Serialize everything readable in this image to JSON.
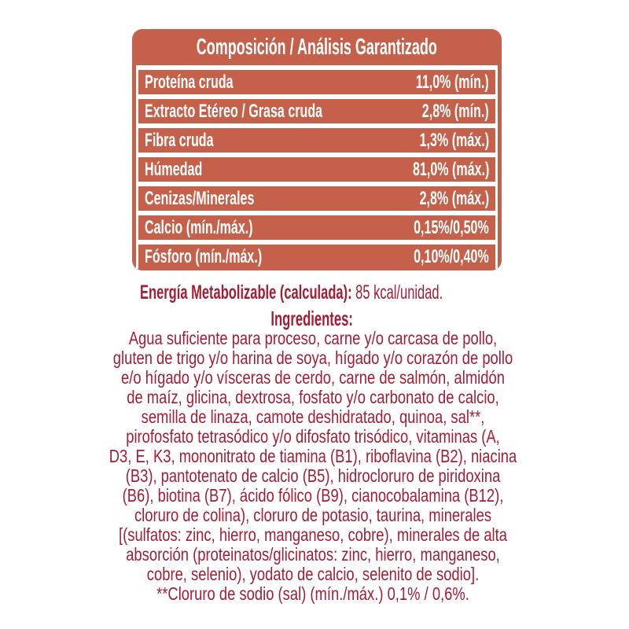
{
  "colors": {
    "table_bg": "#c5604a",
    "text_red": "#a31e35",
    "table_text": "#ffffff"
  },
  "table": {
    "title": "Composición / Análisis Garantizado",
    "rows": [
      {
        "label": "Proteína cruda",
        "value": "11,0% (mín.)"
      },
      {
        "label": "Extracto Etéreo / Grasa cruda",
        "value": "2,8% (mín.)"
      },
      {
        "label": "Fibra cruda",
        "value": "1,3% (máx.)"
      },
      {
        "label": "Húmedad",
        "value": "81,0% (máx.)"
      },
      {
        "label": "Cenizas/Minerales",
        "value": "2,8% (máx.)"
      },
      {
        "label": "Calcio (mín./máx.)",
        "value": "0,15%/0,50%"
      },
      {
        "label": "Fósforo (mín./máx.)",
        "value": "0,10%/0,40%"
      }
    ]
  },
  "energy": {
    "label": "Energía Metabolizable (calculada):",
    "value": " 85 kcal/unidad."
  },
  "ingredients": {
    "heading": "Ingredientes:",
    "lines": [
      "Agua suficiente para proceso, carne y/o carcasa de pollo,",
      "gluten de trigo y/o harina de soya, hígado y/o corazón de pollo",
      "e/o hígado y/o vísceras de cerdo, carne de salmón, almidón",
      "de maíz, glicina, dextrosa, fosfato y/o carbonato de calcio,",
      "semilla de linaza, camote deshidratado, quinoa, sal**,",
      "pirofosfato tetrasódico y/o difosfato trisódico, vitaminas (A,",
      "D3, E, K3, mononitrato de tiamina (B1), riboflavina (B2), niacina",
      "(B3), pantotenato de calcio (B5), hidrocloruro de piridoxina",
      "(B6), biotina (B7), ácido fólico (B9), cianocobalamina (B12),",
      "cloruro de colina), cloruro de potasio, taurina, minerales",
      "[(sulfatos: zinc, hierro, manganeso, cobre), minerales de alta",
      "absorción (proteinatos/glicinatos: zinc, hierro, manganeso,",
      "cobre, selenio), yodato de calcio, selenito de sodio].",
      "**Cloruro de sodio (sal) (mín./máx.) 0,1% / 0,6%."
    ]
  }
}
